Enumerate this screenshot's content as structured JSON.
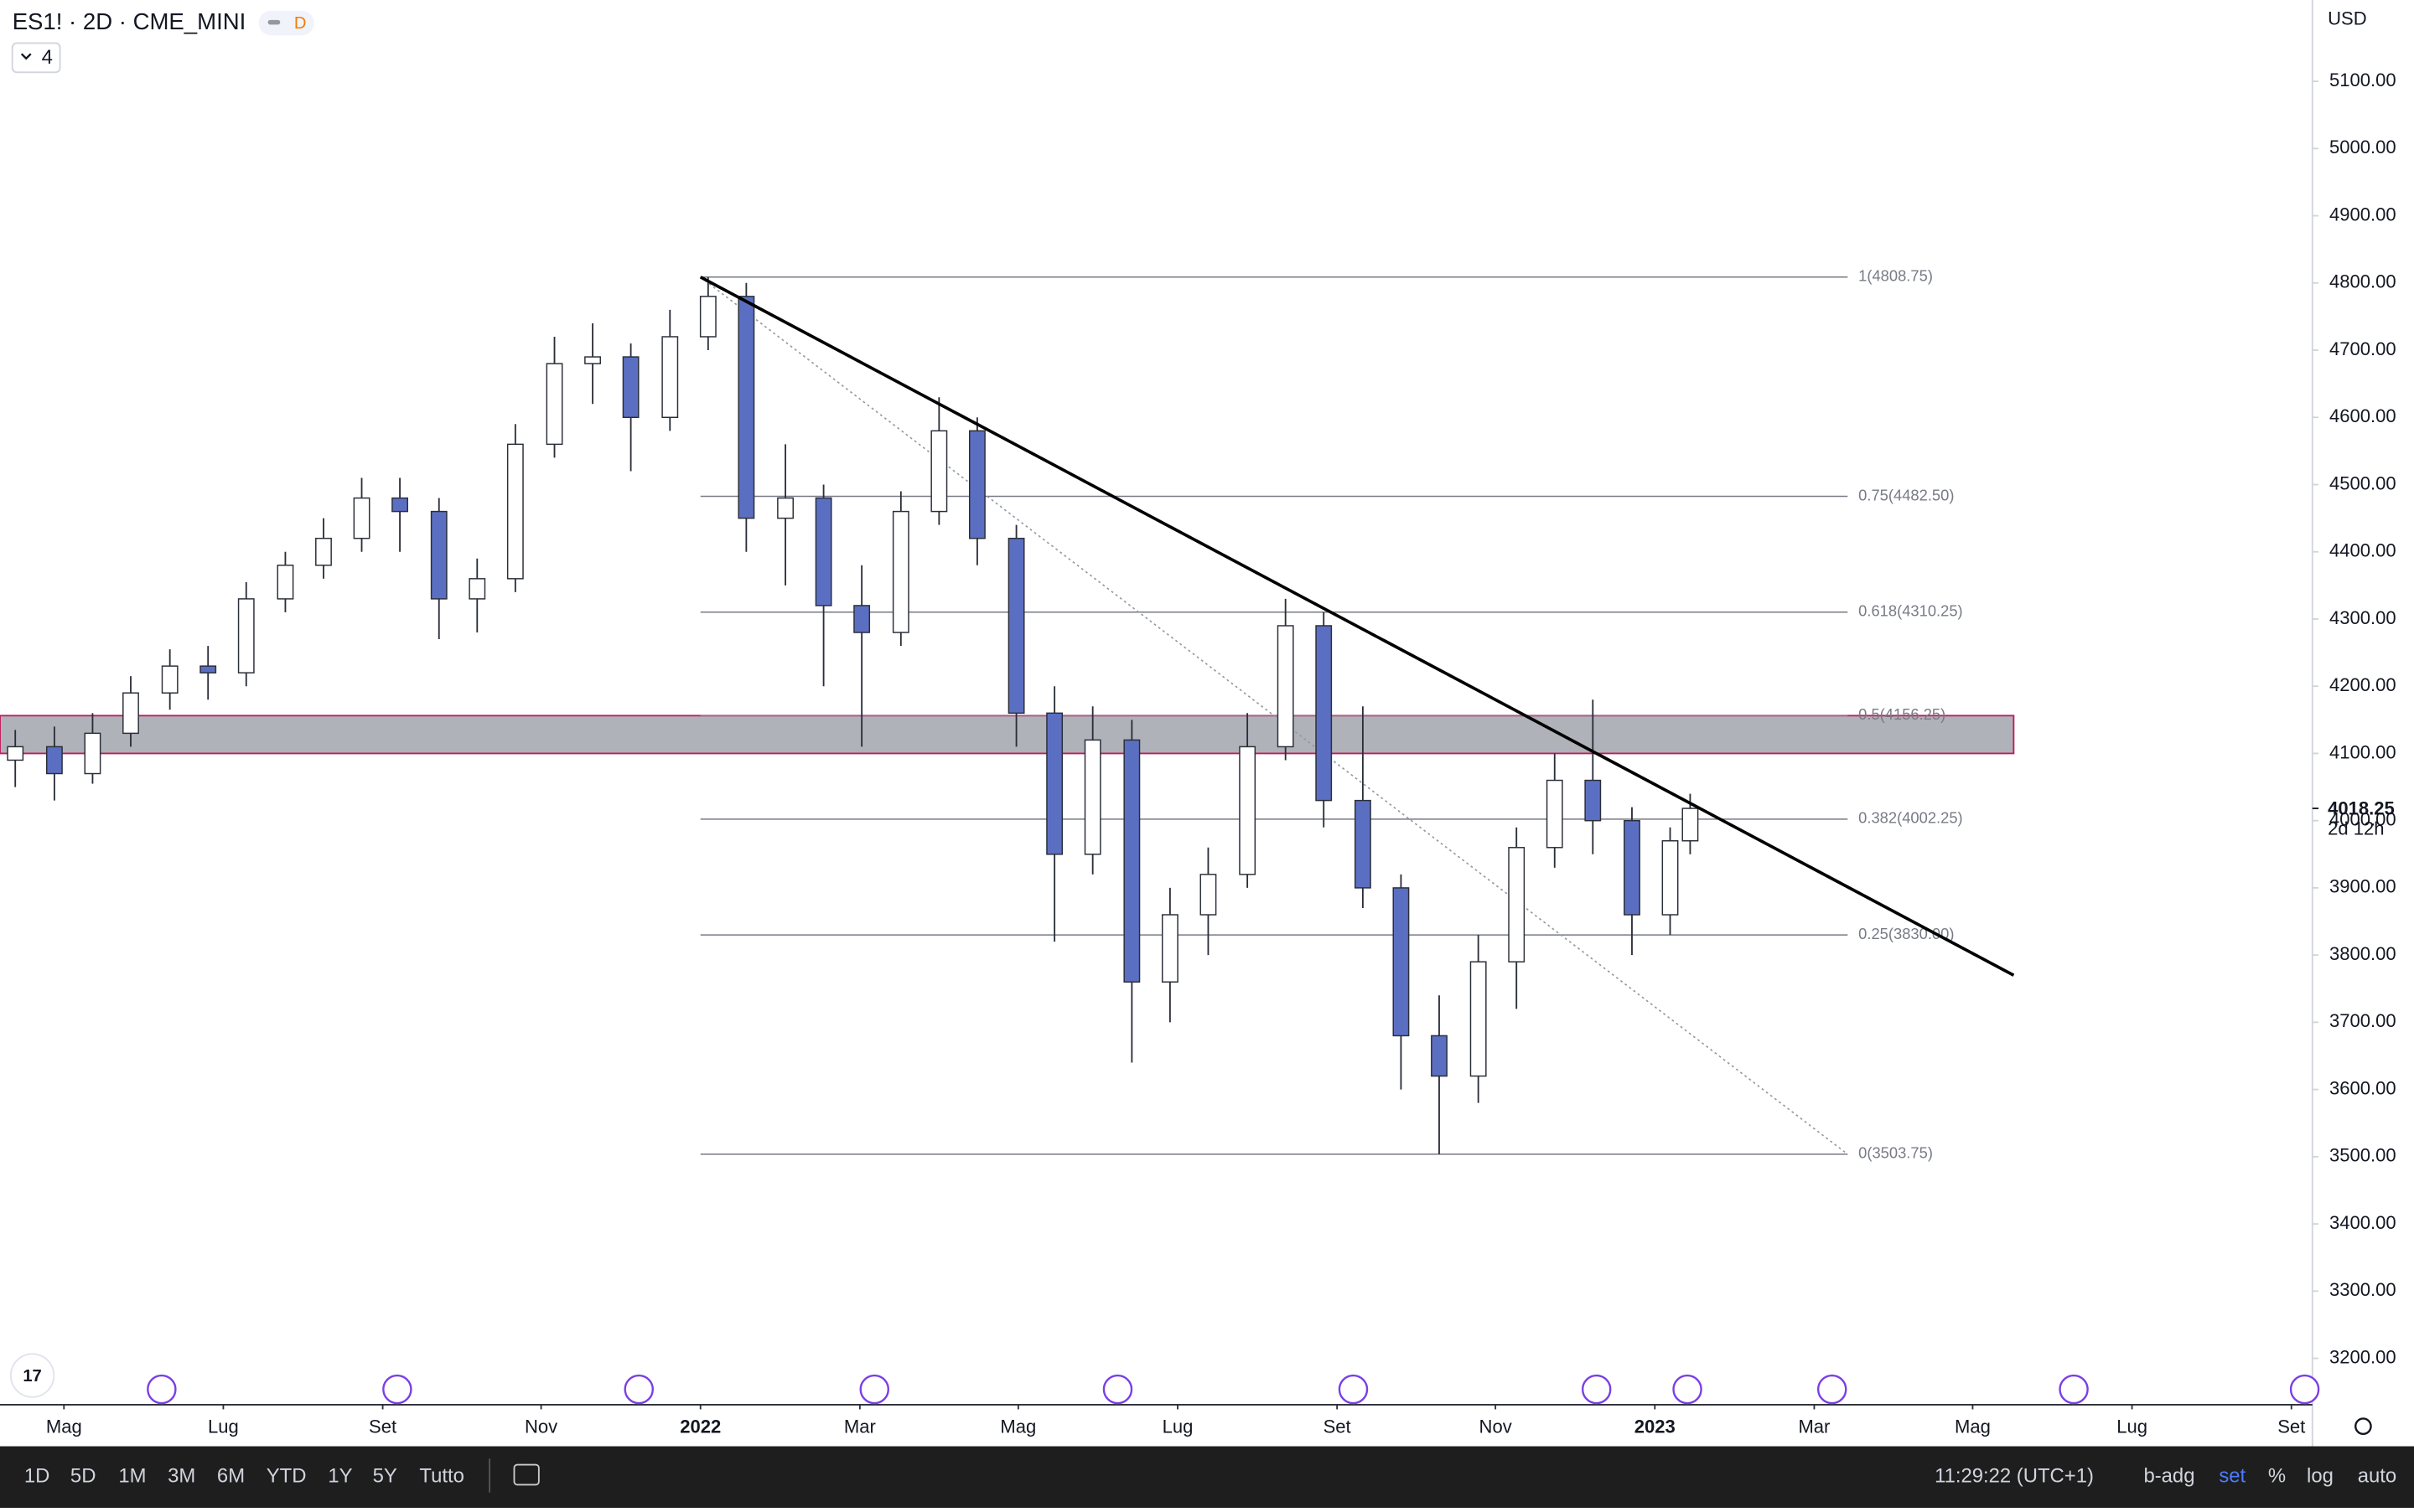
{
  "header": {
    "symbol": "ES1! · 2D · CME_MINI",
    "badge": "D",
    "indicators": "4",
    "currency": "USD"
  },
  "chart_data": {
    "type": "candlestick",
    "x": [
      2021.282,
      2021.323,
      2021.363,
      2021.403,
      2021.444,
      2021.484,
      2021.524,
      2021.565,
      2021.605,
      2021.645,
      2021.685,
      2021.726,
      2021.766,
      2021.806,
      2021.847,
      2021.887,
      2021.927,
      2021.968,
      2022.008,
      2022.048,
      2022.089,
      2022.129,
      2022.169,
      2022.21,
      2022.25,
      2022.29,
      2022.331,
      2022.371,
      2022.411,
      2022.452,
      2022.492,
      2022.532,
      2022.573,
      2022.613,
      2022.653,
      2022.694,
      2022.734,
      2022.774,
      2022.815,
      2022.855,
      2022.895,
      2022.935,
      2022.976,
      2023.016,
      2023.037
    ],
    "open": [
      4090,
      4110,
      4070,
      4130,
      4190,
      4230,
      4220,
      4330,
      4380,
      4420,
      4480,
      4460,
      4330,
      4360,
      4560,
      4680,
      4690,
      4600,
      4720,
      4780,
      4450,
      4480,
      4320,
      4280,
      4460,
      4580,
      4420,
      4160,
      3950,
      4120,
      3760,
      3860,
      3920,
      4110,
      4290,
      4030,
      3900,
      3680,
      3620,
      3790,
      3960,
      4060,
      4000,
      3860,
      3970
    ],
    "high": [
      4135,
      4140,
      4160,
      4215,
      4255,
      4260,
      4355,
      4400,
      4450,
      4510,
      4510,
      4480,
      4390,
      4590,
      4720,
      4740,
      4710,
      4760,
      4808.75,
      4800,
      4560,
      4500,
      4380,
      4490,
      4630,
      4600,
      4440,
      4200,
      4170,
      4150,
      3900,
      3960,
      4160,
      4330,
      4310,
      4170,
      3920,
      3740,
      3830,
      3990,
      4100,
      4180,
      4020,
      3990,
      4040
    ],
    "low": [
      4050,
      4030,
      4055,
      4110,
      4165,
      4180,
      4200,
      4310,
      4360,
      4400,
      4400,
      4270,
      4280,
      4340,
      4540,
      4620,
      4520,
      4580,
      4700,
      4400,
      4350,
      4200,
      4110,
      4260,
      4440,
      4380,
      4110,
      3820,
      3920,
      3640,
      3700,
      3800,
      3900,
      4090,
      3990,
      3870,
      3600,
      3503.75,
      3580,
      3720,
      3930,
      3950,
      3800,
      3830,
      3950
    ],
    "close": [
      4110,
      4070,
      4130,
      4190,
      4230,
      4220,
      4330,
      4380,
      4420,
      4480,
      4460,
      4330,
      4360,
      4560,
      4680,
      4690,
      4600,
      4720,
      4780,
      4450,
      4480,
      4320,
      4280,
      4460,
      4580,
      4420,
      4160,
      3950,
      4120,
      3760,
      3860,
      3920,
      4110,
      4290,
      4030,
      3900,
      3680,
      3620,
      3790,
      3960,
      4060,
      4000,
      3860,
      3970,
      4018.25
    ],
    "up_color": "#ffffff",
    "down_color": "#5b6fc2",
    "outline_color": "#2a2e39",
    "xlim": [
      2021.266,
      2023.689
    ],
    "xticks": [
      {
        "value": 2021.333,
        "label": "Mag"
      },
      {
        "value": 2021.5,
        "label": "Lug"
      },
      {
        "value": 2021.667,
        "label": "Set"
      },
      {
        "value": 2021.833,
        "label": "Nov"
      },
      2022,
      {
        "value": 2022.167,
        "label": "Mar"
      },
      {
        "value": 2022.333,
        "label": "Mag"
      },
      {
        "value": 2022.5,
        "label": "Lug"
      },
      {
        "value": 2022.667,
        "label": "Set"
      },
      {
        "value": 2022.833,
        "label": "Nov"
      },
      2023,
      {
        "value": 2023.167,
        "label": "Mar"
      },
      {
        "value": 2023.333,
        "label": "Mag"
      },
      {
        "value": 2023.5,
        "label": "Lug"
      },
      {
        "value": 2023.667,
        "label": "Set"
      }
    ],
    "ylim": [
      3131,
      5221
    ],
    "yticks": [
      {
        "value": 3200,
        "label": "3200.00"
      },
      {
        "value": 3300,
        "label": "3300.00"
      },
      {
        "value": 3400,
        "label": "3400.00"
      },
      {
        "value": 3500,
        "label": "3500.00"
      },
      {
        "value": 3600,
        "label": "3600.00"
      },
      {
        "value": 3700,
        "label": "3700.00"
      },
      {
        "value": 3800,
        "label": "3800.00"
      },
      {
        "value": 3900,
        "label": "3900.00"
      },
      {
        "value": 4000,
        "label": "4000.00"
      },
      {
        "value": 4100,
        "label": "4100.00"
      },
      {
        "value": 4200,
        "label": "4200.00"
      },
      {
        "value": 4300,
        "label": "4300.00"
      },
      {
        "value": 4400,
        "label": "4400.00"
      },
      {
        "value": 4500,
        "label": "4500.00"
      },
      {
        "value": 4600,
        "label": "4600.00"
      },
      {
        "value": 4700,
        "label": "4700.00"
      },
      {
        "value": 4800,
        "label": "4800.00"
      },
      {
        "value": 4900,
        "label": "4900.00"
      },
      {
        "value": 5000,
        "label": "5000.00"
      },
      {
        "value": 5100,
        "label": "5100.00"
      }
    ],
    "last_price": {
      "value": 4018.25,
      "label": "4018.25",
      "countdown": "2d 12h"
    },
    "fib": {
      "x": [
        2022.0,
        2023.202
      ],
      "color": "#787b86",
      "levels": [
        {
          "value": 4808.75,
          "label": "1(4808.75)"
        },
        {
          "value": 4482.5,
          "label": "0.75(4482.50)"
        },
        {
          "value": 4310.25,
          "label": "0.618(4310.25)"
        },
        {
          "value": 4156.25,
          "label": "0.5(4156.25)"
        },
        {
          "value": 4002.25,
          "label": "0.382(4002.25)"
        },
        {
          "value": 3830,
          "label": "0.25(3830.00)"
        },
        {
          "value": 3503.75,
          "label": "0(3503.75)"
        }
      ]
    },
    "zone": {
      "x": [
        2021.266,
        2023.376
      ],
      "y": [
        4100,
        4156.25
      ],
      "color": "#9598a1",
      "border": "#c2185b"
    },
    "trendline": {
      "x": [
        2022.0,
        2023.376
      ],
      "y": [
        4808.75,
        3770
      ],
      "color": "#000000"
    },
    "diagonal": {
      "x": [
        2022.0,
        2023.202
      ],
      "y": [
        4808.75,
        3503.75
      ],
      "color": "#9598a1"
    }
  },
  "toolbar": {
    "ranges": [
      "1D",
      "5D",
      "1M",
      "3M",
      "6M",
      "YTD",
      "1Y",
      "5Y",
      "Tutto"
    ],
    "clock": "11:29:22 (UTC+1)",
    "options": [
      "b-adg",
      "set",
      "%",
      "log",
      "auto"
    ]
  }
}
